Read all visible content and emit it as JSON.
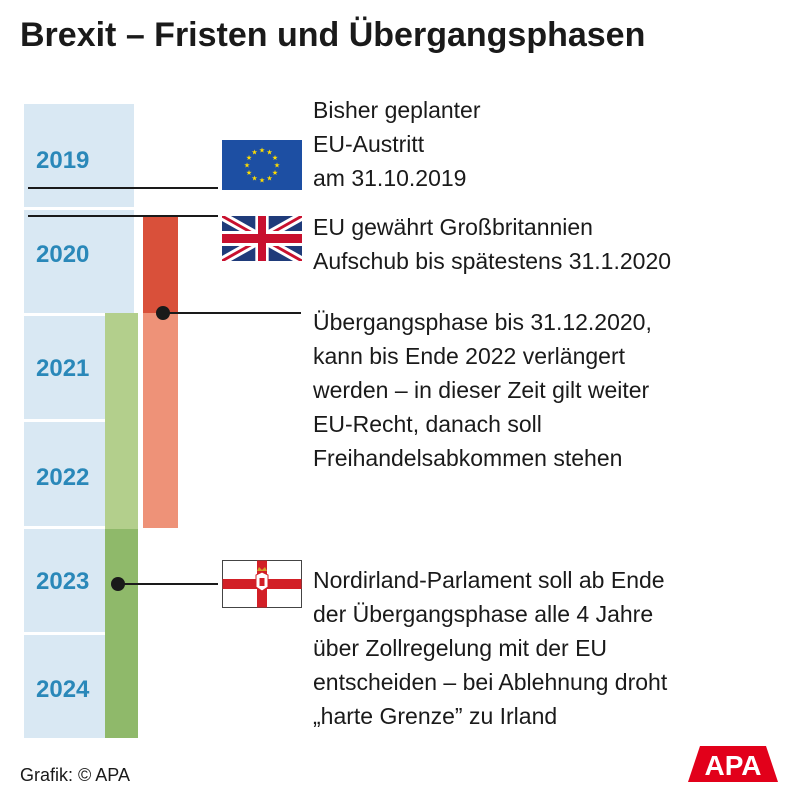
{
  "title": "Brexit – Fristen und Übergangsphasen",
  "years": [
    "2019",
    "2020",
    "2021",
    "2022",
    "2023",
    "2024"
  ],
  "notes": {
    "eu_exit": "Bisher geplanter\nEU-Austritt\nam 31.10.2019",
    "extension": "EU gewährt Großbritannien\nAufschub bis spätestens 31.1.2020",
    "transition": "Übergangsphase bis 31.12.2020,\nkann bis Ende 2022 verlängert\nwerden – in dieser Zeit gilt weiter\nEU-Recht, danach soll\nFreihandelsabkommen stehen",
    "northern_ireland": "Nordirland-Parlament soll ab Ende\nder Übergangsphase alle 4 Jahre\nüber Zollregelung mit der EU\nentscheiden – bei Ablehnung droht\n„harte Grenze” zu Irland"
  },
  "flags": [
    "eu-flag-icon",
    "uk-flag-icon",
    "northern-ireland-flag-icon"
  ],
  "colors": {
    "year_bg": "#d9e8f3",
    "year_text": "#2a88b9",
    "red_dark": "#d9503a",
    "red_light": "#ee9278",
    "green_light": "#b3cf8c",
    "green_dark": "#8fb96a"
  },
  "footer": "Grafik: © APA",
  "logo_text": "APA"
}
